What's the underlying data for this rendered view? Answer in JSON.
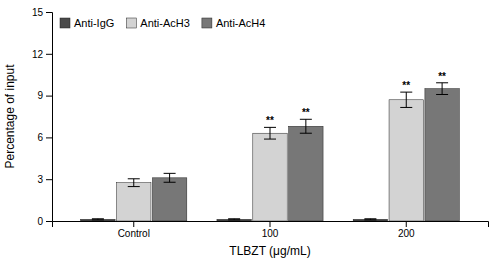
{
  "chart_data": {
    "type": "bar",
    "categories": [
      "Control",
      "100",
      "200"
    ],
    "series": [
      {
        "name": "Anti-IgG",
        "color": "#4a4a4a",
        "values": [
          0.12,
          0.12,
          0.12
        ],
        "errors": [
          0.04,
          0.04,
          0.04
        ],
        "annotations": [
          null,
          null,
          null
        ]
      },
      {
        "name": "Anti-AcH3",
        "color": "#d3d3d3",
        "values": [
          2.75,
          6.3,
          8.7
        ],
        "errors": [
          0.28,
          0.42,
          0.55
        ],
        "annotations": [
          null,
          "**",
          "**"
        ]
      },
      {
        "name": "Anti-AcH4",
        "color": "#777777",
        "values": [
          3.1,
          6.8,
          9.5
        ],
        "errors": [
          0.32,
          0.5,
          0.42
        ],
        "annotations": [
          null,
          "**",
          "**"
        ]
      }
    ],
    "xlabel": "TLBZT (μg/mL)",
    "ylabel": "Percentage of input",
    "ylim": [
      0,
      15
    ],
    "yticks": [
      0,
      3,
      6,
      9,
      12,
      15
    ],
    "legend": "upper left",
    "grid": false
  }
}
